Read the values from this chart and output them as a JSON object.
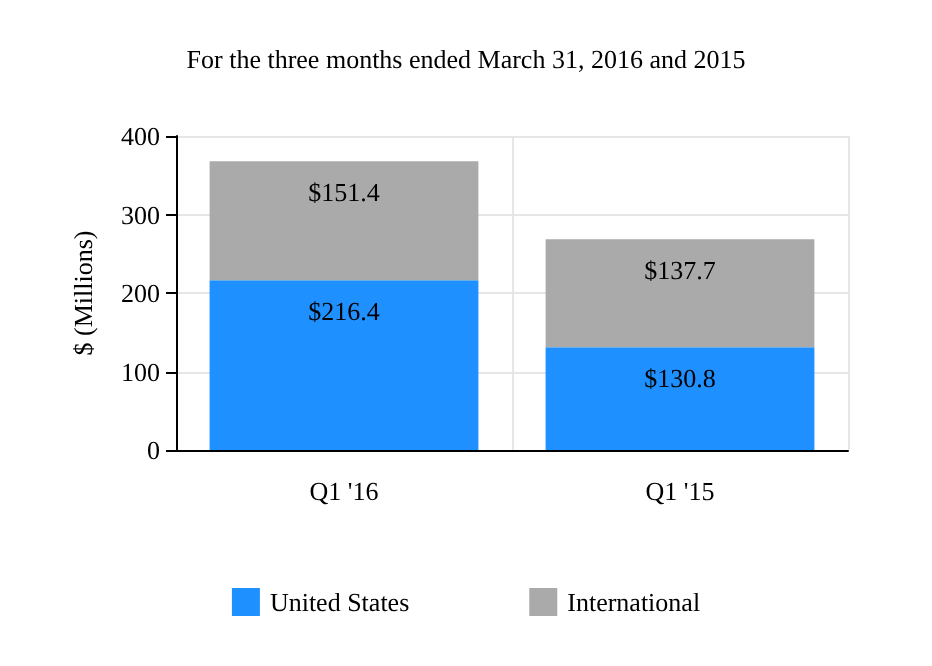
{
  "chart_data": {
    "type": "bar",
    "title": "For the three months ended March 31, 2016 and 2015",
    "ylabel": "$ (Millions)",
    "categories": [
      "Q1 '16",
      "Q1 '15"
    ],
    "stacked": true,
    "series": [
      {
        "name": "United States",
        "color": "#1e90ff",
        "values": [
          216.4,
          130.8
        ],
        "value_labels": [
          "$216.4",
          "$130.8"
        ]
      },
      {
        "name": "International",
        "color": "#aaaaaa",
        "values": [
          151.4,
          137.7
        ],
        "value_labels": [
          "$151.4",
          "$137.7"
        ]
      }
    ],
    "ylim": [
      0,
      400
    ],
    "yticks": [
      0,
      100,
      200,
      300,
      400
    ],
    "grid": true,
    "legend": "bottom"
  }
}
